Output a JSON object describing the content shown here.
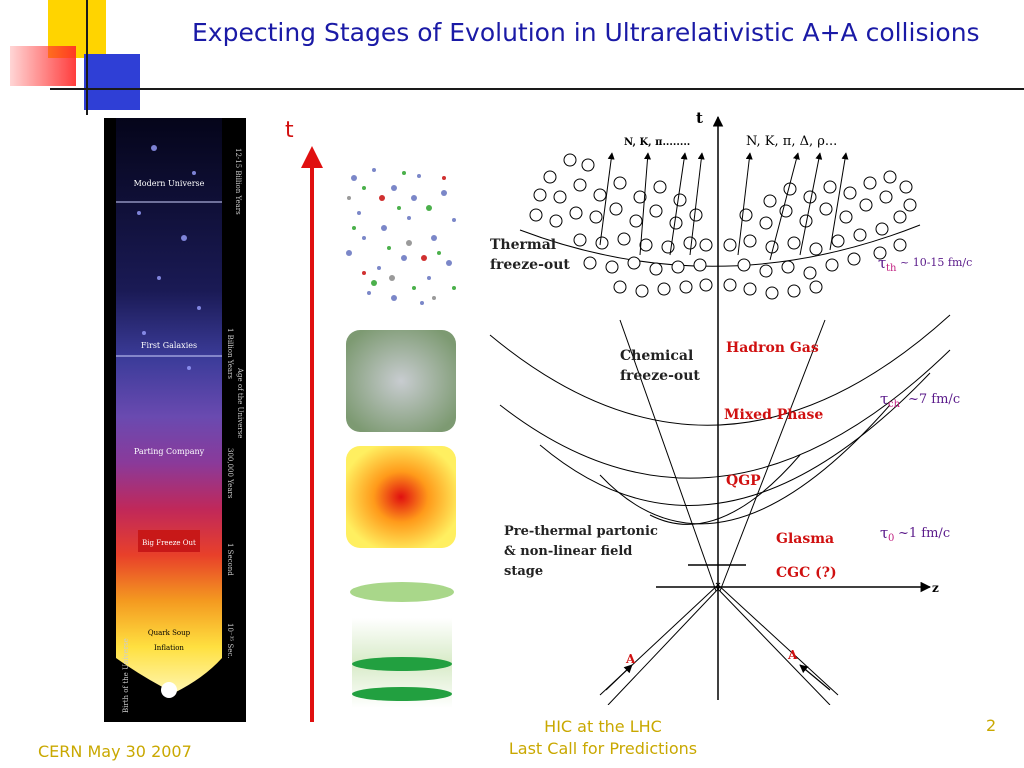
{
  "slide": {
    "title": "Expecting Stages of Evolution in Ultrarelativistic A+A collisions",
    "footer_left": "CERN May 30 2007",
    "footer_mid_line1": "HIC at the LHC",
    "footer_mid_line2": "Last Call for Predictions",
    "page_number": "2"
  },
  "universe": {
    "top_label": "12-15 Billion Years",
    "mid_label": "1 Billion Years",
    "age_label": "Age of the Universe",
    "label_300k": "300,000 Years",
    "label_1s": "1 Second",
    "label_small": "10⁻³⁵ Sec.",
    "bottom_label": "Birth of the Universe",
    "stages": [
      {
        "label": "Modern Universe"
      },
      {
        "label": "First Galaxies"
      },
      {
        "label": "Parting Company"
      },
      {
        "label": "Big Freeze Out"
      },
      {
        "label": "Quark Soup"
      },
      {
        "label": "Inflation"
      }
    ]
  },
  "time_arrow": {
    "label": "t"
  },
  "diagram": {
    "t_axis": "t",
    "z_axis": "z",
    "particles_left": "N, K,  π........",
    "particles_right": "N, K, π, Δ, ρ...",
    "thermal_1": "Thermal",
    "thermal_2": "freeze-out",
    "chemical_1": "Chemical",
    "chemical_2": "freeze-out",
    "hadron_gas": "Hadron Gas",
    "mixed_phase": "Mixed Phase",
    "qgp": "QGP",
    "glasma": "Glasma",
    "cgc": "CGC (?)",
    "prethermal_1": "Pre-thermal partonic",
    "prethermal_2": "& non-linear field",
    "prethermal_3": "stage",
    "tau_th_sym": "τ",
    "tau_th_sub": "th",
    "tau_th_val": "~ 10-15 fm/c",
    "tau_ch_sym": "τ",
    "tau_ch_sub": "ch",
    "tau_ch_val": "~7 fm/c",
    "tau_0_sym": "τ",
    "tau_0_sub": "0",
    "tau_0_val": "~1 fm/c",
    "nucleus_left": "A",
    "nucleus_right": "A"
  }
}
